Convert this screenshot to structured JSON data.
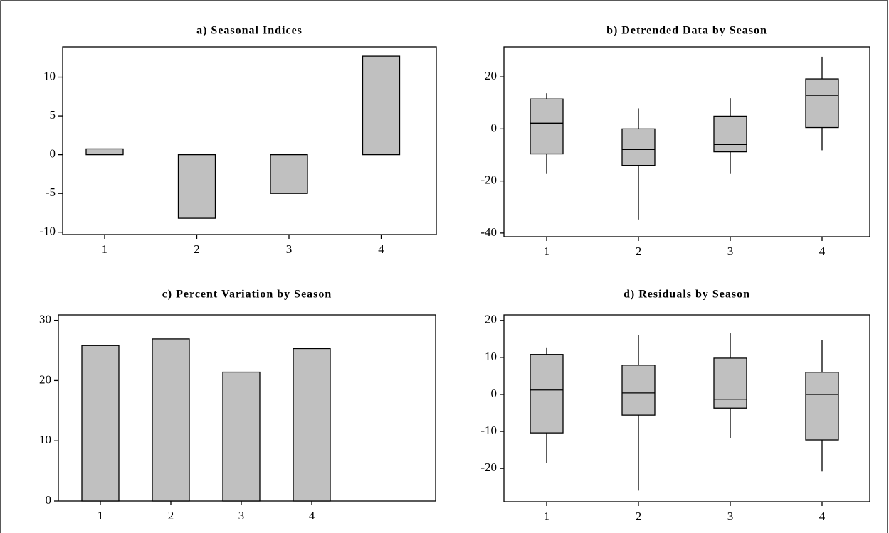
{
  "chart_data": [
    {
      "type": "bar",
      "title": "a) Seasonal Indices",
      "categories": [
        "1",
        "2",
        "3",
        "4"
      ],
      "values": [
        0.75,
        -8.2,
        -5.0,
        12.7
      ],
      "color": "#c0c0c0",
      "ylim": [
        -10.3,
        13.9
      ],
      "yticks": [
        -10,
        -5,
        0,
        5,
        10
      ]
    },
    {
      "type": "box",
      "title": "b) Detrended Data by Season",
      "categories": [
        "1",
        "2",
        "3",
        "4"
      ],
      "whisker_low": [
        -17.3,
        -34.8,
        -17.3,
        -8.2
      ],
      "q1": [
        -9.6,
        -14.0,
        -8.8,
        0.5
      ],
      "median": [
        2.2,
        -7.9,
        -6.0,
        12.9
      ],
      "q3": [
        11.5,
        0.0,
        4.9,
        19.2
      ],
      "whisker_high": [
        13.7,
        7.9,
        11.8,
        27.7
      ],
      "color": "#c0c0c0",
      "ylim": [
        -41.4,
        31.5
      ],
      "yticks": [
        -40,
        -20,
        0,
        20
      ]
    },
    {
      "type": "bar",
      "title": "c) Percent Variation by Season",
      "categories": [
        "1",
        "2",
        "3",
        "4"
      ],
      "values": [
        25.8,
        26.9,
        21.4,
        25.3
      ],
      "color": "#c0c0c0",
      "ylim": [
        0,
        30.9
      ],
      "yticks": [
        0,
        10,
        20,
        30
      ]
    },
    {
      "type": "box",
      "title": "d) Residuals by Season",
      "categories": [
        "1",
        "2",
        "3",
        "4"
      ],
      "whisker_low": [
        -18.5,
        -26.0,
        -11.9,
        -20.8
      ],
      "q1": [
        -10.4,
        -5.6,
        -3.7,
        -12.3
      ],
      "median": [
        1.2,
        0.4,
        -1.3,
        0.0
      ],
      "q3": [
        10.8,
        7.9,
        9.8,
        6.0
      ],
      "whisker_high": [
        12.7,
        16.0,
        16.5,
        14.6
      ],
      "color": "#c0c0c0",
      "ylim": [
        -29.0,
        21.5
      ],
      "yticks": [
        -20,
        -10,
        0,
        10,
        20
      ]
    }
  ]
}
